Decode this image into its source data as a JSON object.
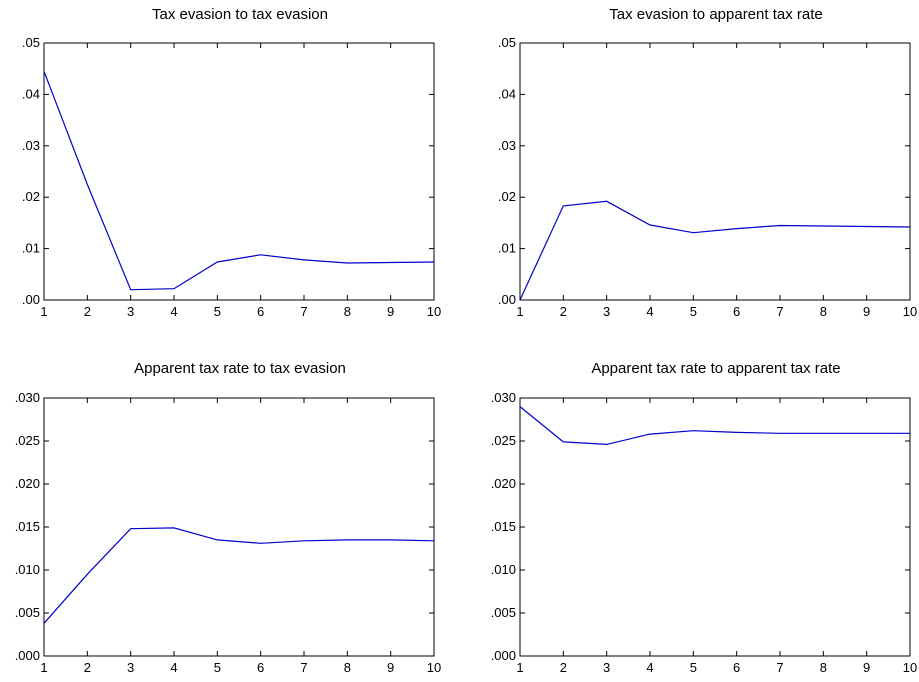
{
  "chart_data": [
    {
      "type": "line",
      "title": "Tax evasion to tax evasion",
      "x": [
        1,
        2,
        3,
        4,
        5,
        6,
        7,
        8,
        9,
        10
      ],
      "series": [
        {
          "values": [
            0.0445,
            0.0225,
            0.002,
            0.0022,
            0.0074,
            0.0088,
            0.0078,
            0.0072,
            0.0073,
            0.0074
          ]
        }
      ],
      "ylim": [
        0,
        0.05
      ],
      "yticks": [
        0,
        0.01,
        0.02,
        0.03,
        0.04,
        0.05
      ],
      "ytick_labels": [
        ".00",
        ".01",
        ".02",
        ".03",
        ".04",
        ".05"
      ],
      "xlim": [
        1,
        10
      ],
      "xtick_labels": [
        "1",
        "2",
        "3",
        "4",
        "5",
        "6",
        "7",
        "8",
        "9",
        "10"
      ],
      "grid": false,
      "line_color": "#0000cc"
    },
    {
      "type": "line",
      "title": "Tax evasion to apparent tax rate",
      "x": [
        1,
        2,
        3,
        4,
        5,
        6,
        7,
        8,
        9,
        10
      ],
      "series": [
        {
          "values": [
            0.0,
            0.0183,
            0.0192,
            0.0146,
            0.0131,
            0.0139,
            0.0145,
            0.0144,
            0.0143,
            0.0142
          ]
        }
      ],
      "ylim": [
        0,
        0.05
      ],
      "yticks": [
        0,
        0.01,
        0.02,
        0.03,
        0.04,
        0.05
      ],
      "ytick_labels": [
        ".00",
        ".01",
        ".02",
        ".03",
        ".04",
        ".05"
      ],
      "xlim": [
        1,
        10
      ],
      "xtick_labels": [
        "1",
        "2",
        "3",
        "4",
        "5",
        "6",
        "7",
        "8",
        "9",
        "10"
      ],
      "grid": false,
      "line_color": "#0000cc"
    },
    {
      "type": "line",
      "title": "Apparent tax rate  to tax evasion",
      "x": [
        1,
        2,
        3,
        4,
        5,
        6,
        7,
        8,
        9,
        10
      ],
      "series": [
        {
          "values": [
            0.0038,
            0.0095,
            0.0148,
            0.0149,
            0.0135,
            0.0131,
            0.0134,
            0.0135,
            0.0135,
            0.0134
          ]
        }
      ],
      "ylim": [
        0,
        0.03
      ],
      "yticks": [
        0,
        0.005,
        0.01,
        0.015,
        0.02,
        0.025,
        0.03
      ],
      "ytick_labels": [
        ".000",
        ".005",
        ".010",
        ".015",
        ".020",
        ".025",
        ".030"
      ],
      "xlim": [
        1,
        10
      ],
      "xtick_labels": [
        "1",
        "2",
        "3",
        "4",
        "5",
        "6",
        "7",
        "8",
        "9",
        "10"
      ],
      "grid": false,
      "line_color": "#0000cc"
    },
    {
      "type": "line",
      "title": "Apparent tax rate  to apparent tax rate",
      "x": [
        1,
        2,
        3,
        4,
        5,
        6,
        7,
        8,
        9,
        10
      ],
      "series": [
        {
          "values": [
            0.029,
            0.0249,
            0.0246,
            0.0258,
            0.0262,
            0.026,
            0.0259,
            0.0259,
            0.0259,
            0.0259
          ]
        }
      ],
      "ylim": [
        0,
        0.03
      ],
      "yticks": [
        0,
        0.005,
        0.01,
        0.015,
        0.02,
        0.025,
        0.03
      ],
      "ytick_labels": [
        ".000",
        ".005",
        ".010",
        ".015",
        ".020",
        ".025",
        ".030"
      ],
      "xlim": [
        1,
        10
      ],
      "xtick_labels": [
        "1",
        "2",
        "3",
        "4",
        "5",
        "6",
        "7",
        "8",
        "9",
        "10"
      ],
      "grid": false,
      "line_color": "#0000cc"
    }
  ]
}
